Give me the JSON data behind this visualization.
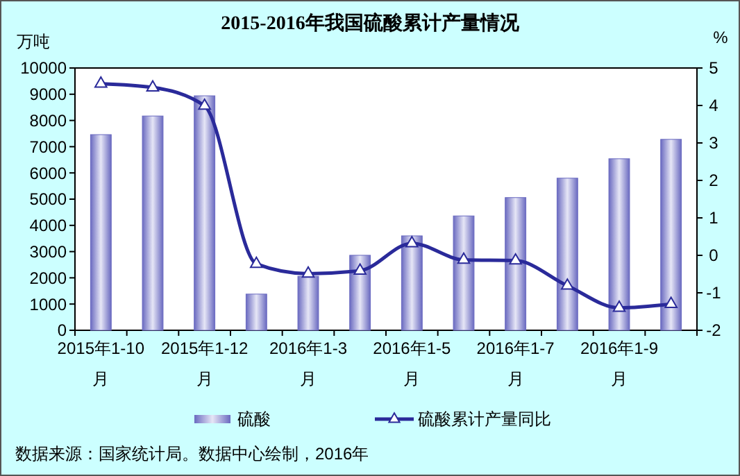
{
  "chart_data": {
    "type": "bar",
    "title": "2015-2016年我国硫酸累计产量情况",
    "ylabel": "万吨",
    "y2label": "%",
    "categories": [
      "2015年1-10月",
      null,
      "2015年1-12月",
      null,
      "2016年1-3月",
      null,
      "2016年1-5月",
      null,
      "2016年1-7月",
      null,
      "2016年1-9月",
      null
    ],
    "series": [
      {
        "name": "硫酸",
        "color": "#6a6ac0",
        "values": [
          7460,
          8170,
          8940,
          1380,
          2060,
          2860,
          3600,
          4360,
          5060,
          5800,
          6540,
          7280
        ]
      },
      {
        "name": "硫酸累计产量同比",
        "type": "line",
        "axis": "y2",
        "color": "#2a2a9a",
        "marker": "triangle",
        "values": [
          4.58,
          4.48,
          3.99,
          -0.23,
          -0.49,
          -0.41,
          0.32,
          -0.12,
          -0.14,
          -0.81,
          -1.4,
          -1.3
        ]
      }
    ],
    "ylim": [
      0,
      10000
    ],
    "yticks": [
      0,
      1000,
      2000,
      3000,
      4000,
      5000,
      6000,
      7000,
      8000,
      9000,
      10000
    ],
    "y2lim": [
      -2,
      5
    ],
    "y2ticks": [
      -2,
      -1,
      0,
      1,
      2,
      3,
      4,
      5
    ],
    "legend": "bottom",
    "grid": false,
    "annotations": [
      "数据来源：国家统计局。数据中心绘制，2016年"
    ]
  }
}
